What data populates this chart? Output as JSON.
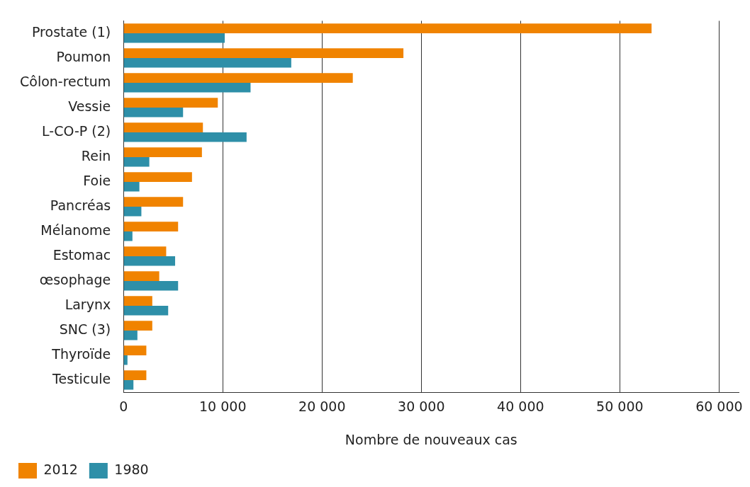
{
  "chart_data": {
    "type": "bar",
    "orientation": "horizontal",
    "xlabel": "Nombre de nouveaux cas",
    "categories": [
      "Prostate (1)",
      "Poumon",
      "Côlon-rectum",
      "Vessie",
      "L-CO-P (2)",
      "Rein",
      "Foie",
      "Pancréas",
      "Mélanome",
      "Estomac",
      "œsophage",
      "Larynx",
      "SNC (3)",
      "Thyroïde",
      "Testicule"
    ],
    "series": [
      {
        "name": "2012",
        "color": "#f08300",
        "values": [
          53200,
          28200,
          23100,
          9500,
          8000,
          7900,
          6900,
          6000,
          5500,
          4300,
          3600,
          2900,
          2900,
          2300,
          2300
        ]
      },
      {
        "name": "1980",
        "color": "#2e8fa8",
        "values": [
          10200,
          16900,
          12800,
          6000,
          12400,
          2600,
          1600,
          1800,
          900,
          5200,
          5500,
          4500,
          1400,
          400,
          1000
        ]
      }
    ],
    "xlim": [
      0,
      62000
    ],
    "xticks": [
      {
        "value": 0,
        "label": "0"
      },
      {
        "value": 10000,
        "label": "10 000"
      },
      {
        "value": 20000,
        "label": "20 000"
      },
      {
        "value": 30000,
        "label": "30 000"
      },
      {
        "value": 40000,
        "label": "40 000"
      },
      {
        "value": 50000,
        "label": "50 000"
      },
      {
        "value": 60000,
        "label": "60 000"
      }
    ],
    "grid": "x",
    "legend": "bottom left"
  }
}
